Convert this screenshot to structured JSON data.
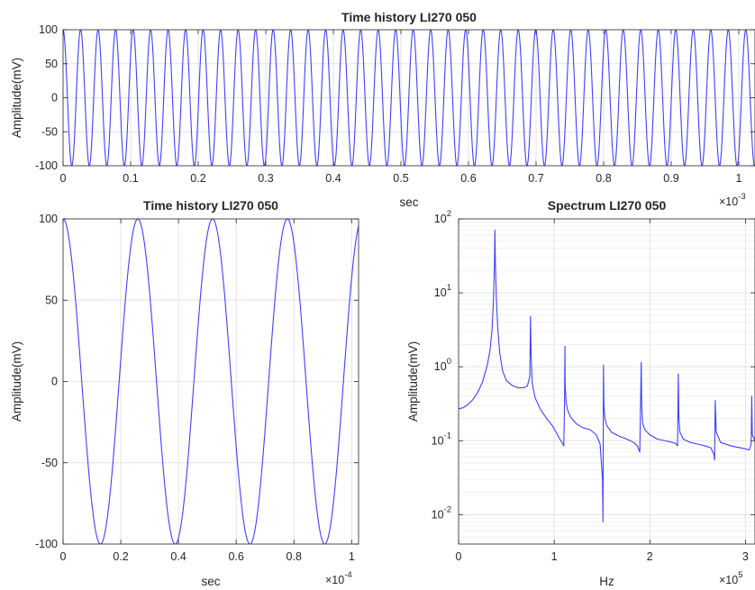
{
  "chart_data": [
    {
      "id": "top",
      "type": "line",
      "title": "Time history LI270 050",
      "xlabel": "sec",
      "ylabel": "Amplitude(mV)",
      "x_exponent_label": "×10",
      "x_exponent": "-3",
      "xlim": [
        0,
        1.024
      ],
      "ylim": [
        -100,
        100
      ],
      "xticks": [
        0,
        0.1,
        0.2,
        0.3,
        0.4,
        0.5,
        0.6,
        0.7,
        0.8,
        0.9,
        1
      ],
      "xtick_labels": [
        "0",
        "0.1",
        "0.2",
        "0.3",
        "0.4",
        "0.5",
        "0.6",
        "0.7",
        "0.8",
        "0.9",
        "1"
      ],
      "yticks": [
        -100,
        -50,
        0,
        50,
        100
      ],
      "ytick_labels": [
        "-100",
        "-50",
        "0",
        "50",
        "100"
      ],
      "grid": true,
      "series": [
        {
          "signal": "cosine",
          "amplitude": 100,
          "cycles_per_x_unit": 38.6,
          "phase_deg": 0,
          "color": "#4040ff"
        }
      ]
    },
    {
      "id": "bottom-left",
      "type": "line",
      "title": "Time history LI270 050",
      "xlabel": "sec",
      "ylabel": "Amplitude(mV)",
      "x_exponent_label": "×10",
      "x_exponent": "-4",
      "xlim": [
        0,
        1.024
      ],
      "ylim": [
        -100,
        100
      ],
      "xticks": [
        0,
        0.2,
        0.4,
        0.6,
        0.8,
        1
      ],
      "xtick_labels": [
        "0",
        "0.2",
        "0.4",
        "0.6",
        "0.8",
        "1"
      ],
      "yticks": [
        -100,
        -50,
        0,
        50,
        100
      ],
      "ytick_labels": [
        "-100",
        "-50",
        "0",
        "50",
        "100"
      ],
      "grid": true,
      "series": [
        {
          "signal": "cosine",
          "amplitude": 100,
          "cycles_per_x_unit": 3.86,
          "phase_deg": 0,
          "color": "#4040ff"
        }
      ]
    },
    {
      "id": "bottom-right",
      "type": "line",
      "title": "Spectrum LI270 050",
      "xlabel": "Hz",
      "ylabel": "Amplitude(mV)",
      "x_exponent_label": "×10",
      "x_exponent": "5",
      "yscale": "log",
      "xlim": [
        0,
        3.1
      ],
      "ylim": [
        0.004,
        100
      ],
      "xticks": [
        0,
        1,
        2,
        3
      ],
      "xtick_labels": [
        "0",
        "1",
        "2",
        "3"
      ],
      "yticks": [
        0.01,
        0.1,
        1,
        10,
        100
      ],
      "ytick_mantissa": "10",
      "ytick_exponents": [
        "-2",
        "-1",
        "0",
        "1",
        "2"
      ],
      "grid": true,
      "series": [
        {
          "color": "#4040ff",
          "x": [
            0.0,
            0.05,
            0.1,
            0.15,
            0.2,
            0.25,
            0.3,
            0.33,
            0.35,
            0.365,
            0.375,
            0.38,
            0.385,
            0.395,
            0.41,
            0.43,
            0.46,
            0.5,
            0.56,
            0.62,
            0.68,
            0.72,
            0.745,
            0.752,
            0.758,
            0.77,
            0.8,
            0.86,
            0.92,
            0.98,
            1.02,
            1.05,
            1.08,
            1.1,
            1.108,
            1.112,
            1.115,
            1.125,
            1.14,
            1.17,
            1.23,
            1.3,
            1.38,
            1.44,
            1.48,
            1.505,
            1.51,
            1.515,
            1.52,
            1.53,
            1.55,
            1.6,
            1.68,
            1.76,
            1.83,
            1.87,
            1.895,
            1.91,
            1.915,
            1.925,
            1.95,
            2.0,
            2.08,
            2.16,
            2.23,
            2.27,
            2.29,
            2.298,
            2.304,
            2.315,
            2.35,
            2.42,
            2.5,
            2.58,
            2.64,
            2.67,
            2.678,
            2.684,
            2.695,
            2.74,
            2.85,
            2.95,
            3.04,
            3.06,
            3.066,
            3.072,
            3.1
          ],
          "y": [
            0.27,
            0.28,
            0.31,
            0.36,
            0.45,
            0.62,
            1.05,
            1.7,
            3.2,
            8.0,
            25,
            70,
            25,
            8.5,
            3.3,
            1.55,
            0.88,
            0.65,
            0.56,
            0.52,
            0.52,
            0.55,
            0.75,
            4.8,
            1.5,
            0.6,
            0.38,
            0.26,
            0.2,
            0.16,
            0.13,
            0.11,
            0.095,
            0.085,
            0.3,
            1.9,
            0.55,
            0.33,
            0.26,
            0.21,
            0.17,
            0.15,
            0.14,
            0.12,
            0.09,
            0.03,
            0.008,
            1.05,
            0.3,
            0.2,
            0.16,
            0.13,
            0.115,
            0.105,
            0.095,
            0.085,
            0.07,
            1.15,
            0.3,
            0.17,
            0.14,
            0.12,
            0.105,
            0.1,
            0.095,
            0.092,
            0.085,
            0.8,
            0.2,
            0.13,
            0.105,
            0.095,
            0.09,
            0.085,
            0.08,
            0.065,
            0.055,
            0.35,
            0.13,
            0.095,
            0.085,
            0.08,
            0.075,
            0.09,
            0.4,
            0.12,
            0.1
          ]
        }
      ]
    }
  ]
}
